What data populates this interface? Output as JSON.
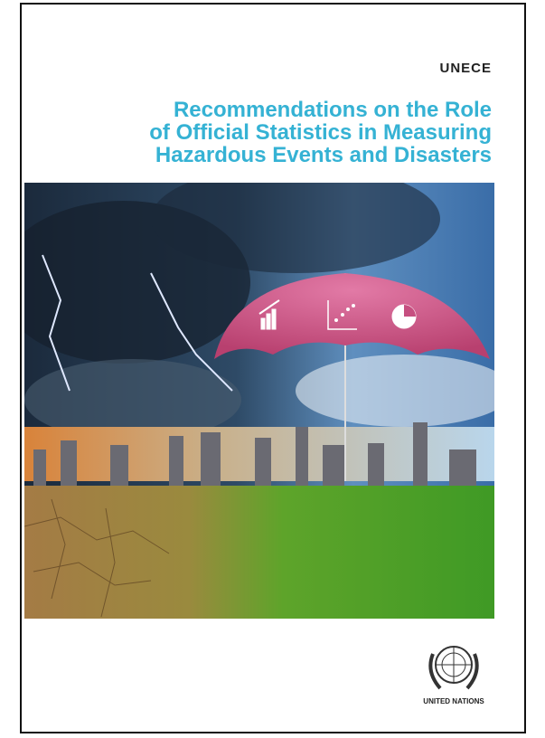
{
  "header": {
    "org": "UNECE"
  },
  "title": {
    "lines": [
      "Recommendations on the Role",
      "of Official Statistics in Measuring",
      "Hazardous Events and Disasters"
    ]
  },
  "footer": {
    "publisher": "UNITED NATIONS"
  }
}
